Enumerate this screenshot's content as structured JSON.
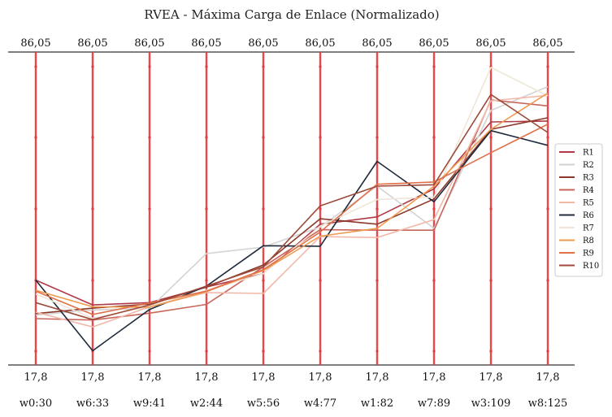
{
  "chart_data": {
    "type": "line",
    "title": "RVEA - Máxima Carga de Enlace (Normalizado)",
    "axis_top_label": "86,05",
    "axis_bottom_label": "17,8",
    "ylim": [
      17.8,
      86.05
    ],
    "grid": false,
    "legend_position": "right",
    "categories": [
      "w0:30",
      "w6:33",
      "w9:41",
      "w2:44",
      "w5:56",
      "w4:77",
      "w1:82",
      "w7:89",
      "w3:109",
      "w8:125"
    ],
    "series": [
      {
        "name": "R1",
        "color": "#b03a48",
        "values": [
          36.3,
          30.9,
          31.4,
          34.8,
          37.7,
          48.5,
          50.1,
          56.2,
          70.8,
          71.0
        ]
      },
      {
        "name": "R2",
        "color": "#d3d3d3",
        "values": [
          28.7,
          29.8,
          30.1,
          42.1,
          43.5,
          47.9,
          56.8,
          47.6,
          73.3,
          78.5
        ]
      },
      {
        "name": "R3",
        "color": "#8b3a2a",
        "values": [
          29.0,
          30.2,
          31.1,
          34.8,
          39.6,
          49.7,
          48.5,
          54.0,
          69.2,
          71.7
        ]
      },
      {
        "name": "R4",
        "color": "#c8665a",
        "values": [
          27.9,
          27.6,
          29.1,
          31.0,
          39.2,
          47.3,
          47.2,
          47.2,
          75.6,
          74.3
        ]
      },
      {
        "name": "R5",
        "color": "#f2b8a8",
        "values": [
          29.3,
          26.1,
          30.5,
          33.6,
          33.4,
          45.8,
          45.6,
          49.5,
          75.4,
          76.6
        ]
      },
      {
        "name": "R6",
        "color": "#1f2a3c",
        "values": [
          36.3,
          20.9,
          29.9,
          35.0,
          43.8,
          43.7,
          62.2,
          53.4,
          68.9,
          65.7
        ]
      },
      {
        "name": "R7",
        "color": "#efe6d8",
        "values": [
          33.3,
          28.0,
          30.6,
          34.1,
          37.7,
          48.1,
          53.9,
          54.4,
          82.7,
          76.5
        ]
      },
      {
        "name": "R8",
        "color": "#ee9a50",
        "values": [
          34.1,
          30.5,
          30.4,
          33.8,
          38.4,
          45.9,
          47.6,
          56.8,
          69.2,
          77.1
        ]
      },
      {
        "name": "R9",
        "color": "#e07048",
        "values": [
          33.9,
          28.8,
          31.3,
          33.9,
          38.6,
          46.8,
          57.2,
          57.7,
          64.1,
          70.3
        ]
      },
      {
        "name": "R10",
        "color": "#9e4a3a",
        "values": [
          31.4,
          27.7,
          30.9,
          35.0,
          39.2,
          52.5,
          56.8,
          57.1,
          76.8,
          68.5
        ]
      }
    ]
  },
  "colors": {
    "axis_line": "#e8383d",
    "axis_marker": "#e8383d"
  }
}
